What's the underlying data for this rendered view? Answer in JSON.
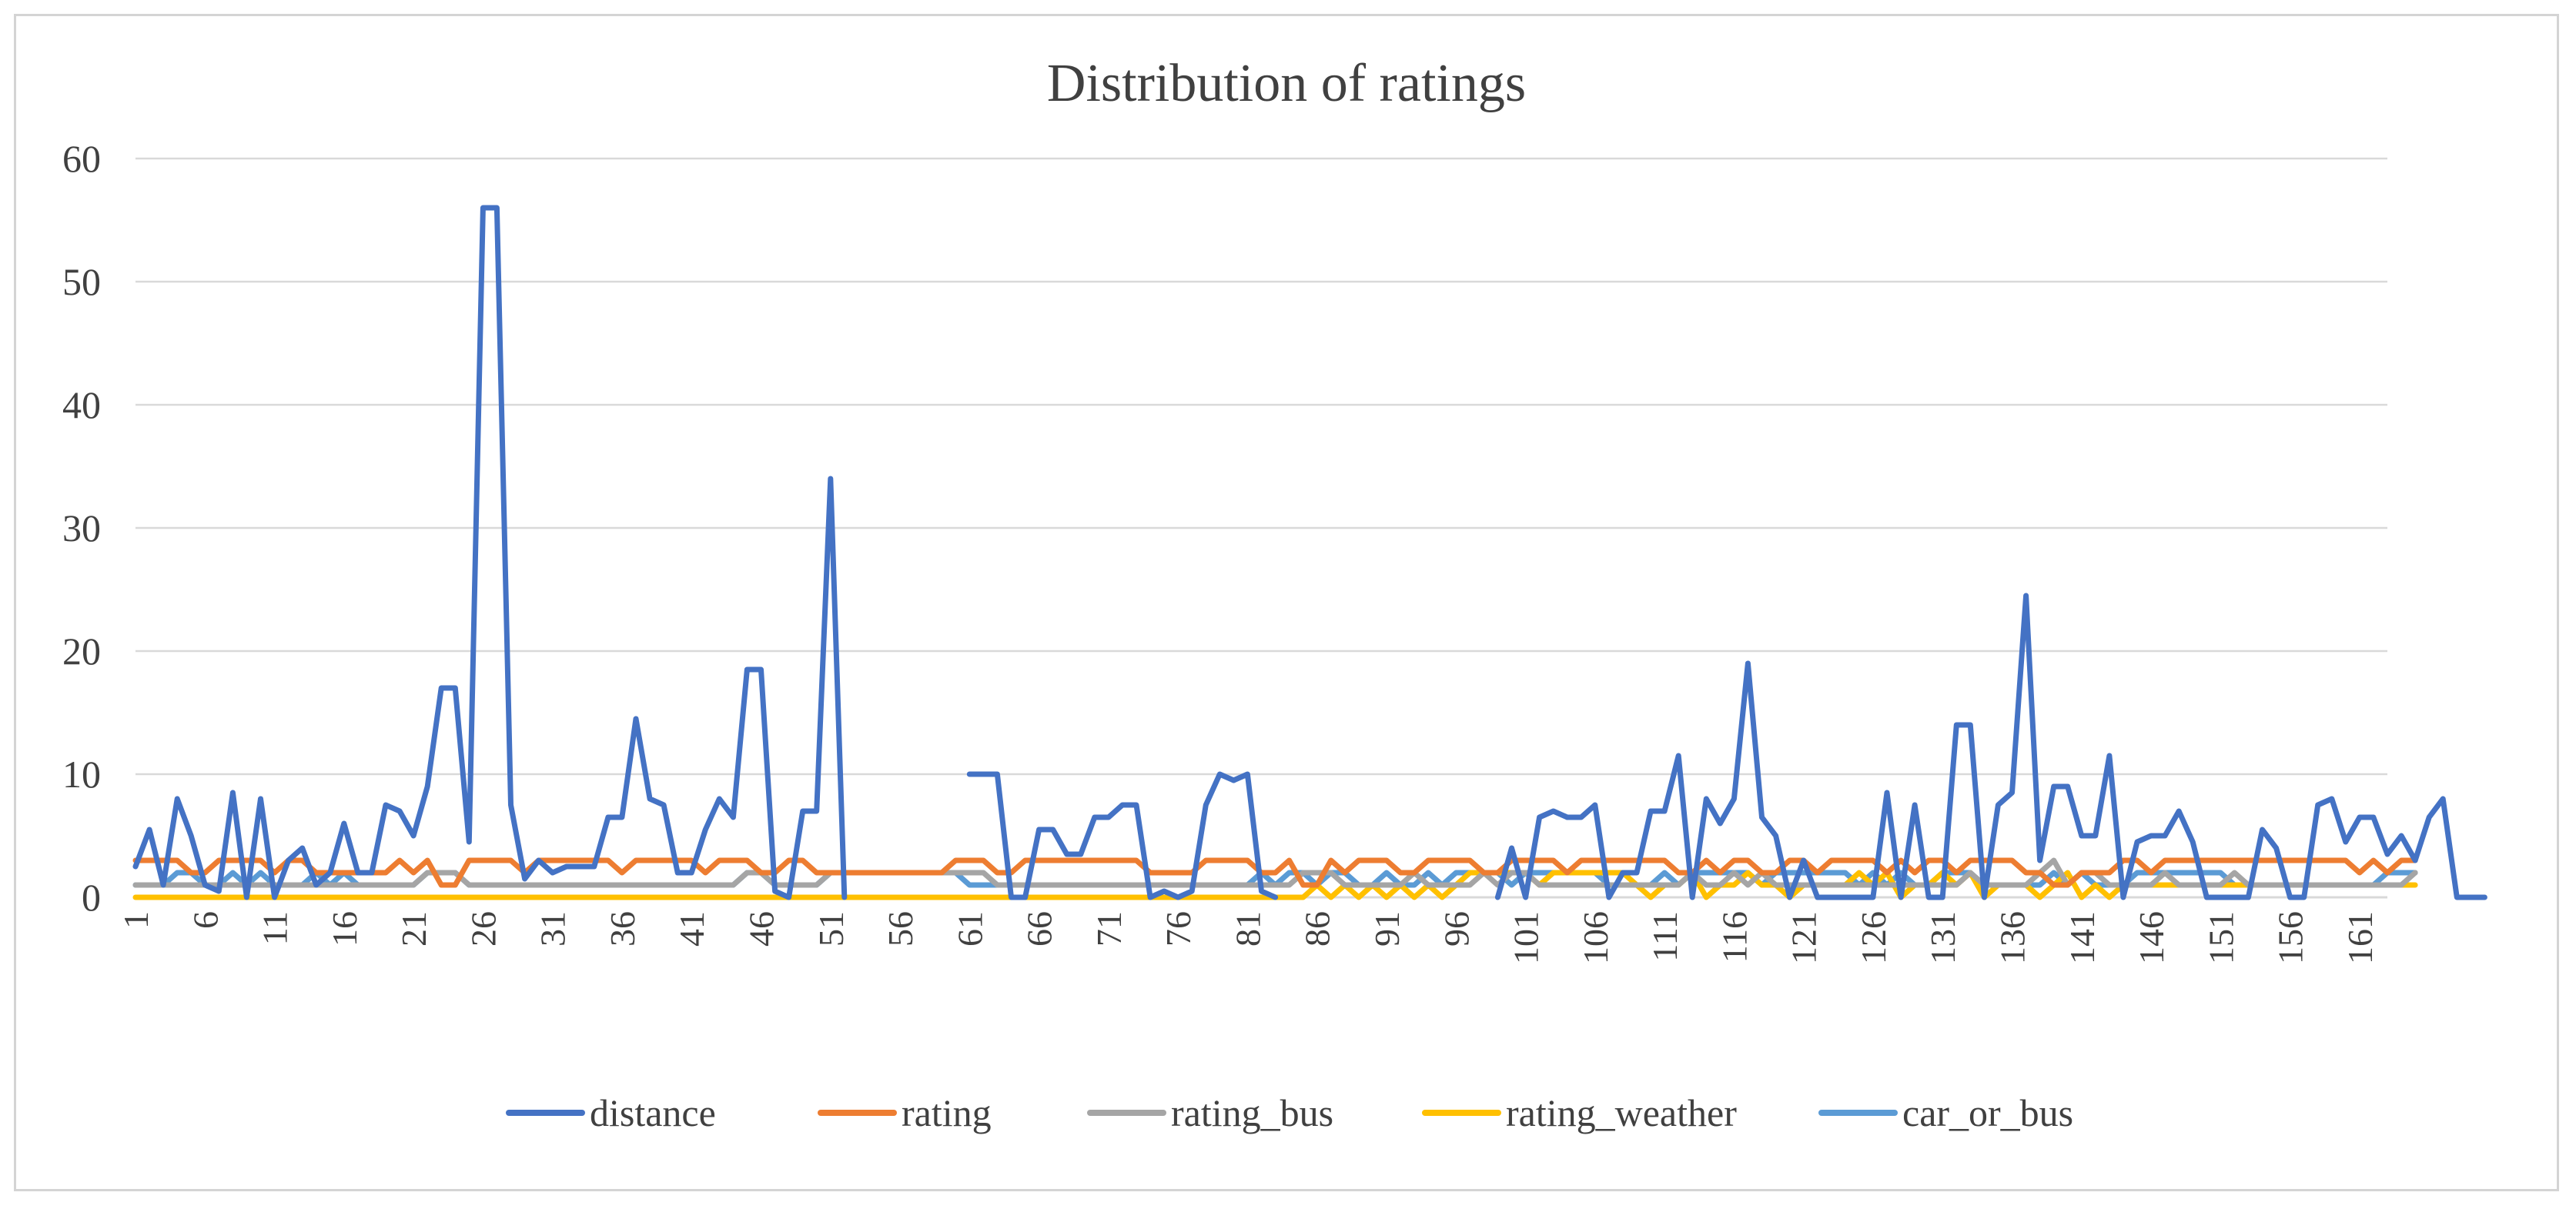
{
  "chart_data": {
    "type": "line",
    "title": "Distribution of ratings",
    "xlabel": "",
    "ylabel": "",
    "ylim": [
      0,
      60
    ],
    "yticks": [
      "0",
      "10",
      "20",
      "30",
      "40",
      "50",
      "60"
    ],
    "x_range": [
      1,
      163
    ],
    "xticks": [
      "1",
      "6",
      "11",
      "16",
      "21",
      "26",
      "31",
      "36",
      "41",
      "46",
      "51",
      "56",
      "61",
      "66",
      "71",
      "76",
      "81",
      "86",
      "91",
      "96",
      "101",
      "106",
      "111",
      "116",
      "121",
      "126",
      "131",
      "136",
      "141",
      "146",
      "151",
      "156",
      "161"
    ],
    "grid": true,
    "legend_position": "bottom",
    "series": [
      {
        "name": "distance",
        "color": "#4472C4",
        "values": [
          2.5,
          5.5,
          1,
          8,
          5,
          1,
          0.5,
          8.5,
          0,
          8,
          0,
          3,
          4,
          1,
          2,
          6,
          2,
          2,
          7.5,
          7,
          5,
          9,
          17,
          17,
          4.5,
          56,
          56,
          7.5,
          1.5,
          3,
          2,
          2.5,
          2.5,
          2.5,
          6.5,
          6.5,
          14.5,
          8,
          7.5,
          2,
          2,
          5.5,
          8,
          6.5,
          18.5,
          18.5,
          0.5,
          0,
          7,
          7,
          34,
          0,
          null,
          null,
          null,
          null,
          null,
          null,
          null,
          null,
          10,
          10,
          10,
          0,
          0,
          5.5,
          5.5,
          3.5,
          3.5,
          6.5,
          6.5,
          7.5,
          7.5,
          0,
          0.5,
          0,
          0.5,
          7.5,
          10,
          9.5,
          10,
          0.5,
          0,
          null,
          null,
          null,
          null,
          null,
          null,
          null,
          null,
          null,
          null,
          null,
          null,
          null,
          null,
          null,
          0,
          4,
          0,
          6.5,
          7,
          6.5,
          6.5,
          7.5,
          0,
          2,
          2,
          7,
          7,
          11.5,
          0,
          8,
          6,
          8,
          19,
          6.5,
          5,
          0,
          3,
          0,
          0,
          0,
          0,
          0,
          8.5,
          0,
          7.5,
          0,
          0,
          14,
          14,
          0,
          7.5,
          8.5,
          24.5,
          3,
          9,
          9,
          5,
          5,
          11.5,
          0,
          4.5,
          5,
          5,
          7,
          4.5,
          0,
          0,
          0,
          0,
          5.5,
          4,
          0,
          0,
          7.5,
          8,
          4.5,
          6.5,
          6.5,
          3.5,
          5,
          3,
          6.5,
          8,
          0,
          0,
          0
        ]
      },
      {
        "name": "rating",
        "color": "#ED7D31",
        "values": [
          3,
          3,
          3,
          3,
          2,
          2,
          3,
          3,
          3,
          3,
          2,
          3,
          3,
          2,
          2,
          2,
          2,
          2,
          2,
          3,
          2,
          3,
          1,
          1,
          3,
          3,
          3,
          3,
          2,
          3,
          3,
          3,
          3,
          3,
          3,
          2,
          3,
          3,
          3,
          3,
          3,
          2,
          3,
          3,
          3,
          2,
          2,
          3,
          3,
          2,
          2,
          2,
          2,
          2,
          2,
          2,
          2,
          2,
          2,
          3,
          3,
          3,
          2,
          2,
          3,
          3,
          3,
          3,
          3,
          3,
          3,
          3,
          3,
          2,
          2,
          2,
          2,
          3,
          3,
          3,
          3,
          2,
          2,
          3,
          1,
          1,
          3,
          2,
          3,
          3,
          3,
          2,
          2,
          3,
          3,
          3,
          3,
          2,
          2,
          3,
          3,
          3,
          3,
          2,
          3,
          3,
          3,
          3,
          3,
          3,
          3,
          2,
          2,
          3,
          2,
          3,
          3,
          2,
          2,
          3,
          3,
          2,
          3,
          3,
          3,
          3,
          2,
          3,
          2,
          3,
          3,
          2,
          3,
          3,
          3,
          3,
          2,
          2,
          1,
          1,
          2,
          2,
          2,
          3,
          3,
          2,
          3,
          3,
          3,
          3,
          3,
          3,
          3,
          3,
          3,
          3,
          3,
          3,
          3,
          3,
          2,
          3,
          2,
          3,
          3
        ]
      },
      {
        "name": "rating_bus",
        "color": "#A5A5A5",
        "values": [
          1,
          1,
          1,
          1,
          1,
          1,
          1,
          1,
          1,
          1,
          1,
          1,
          1,
          1,
          1,
          1,
          1,
          1,
          1,
          1,
          1,
          2,
          2,
          2,
          1,
          1,
          1,
          1,
          1,
          1,
          1,
          1,
          1,
          1,
          1,
          1,
          1,
          1,
          1,
          1,
          1,
          1,
          1,
          1,
          2,
          2,
          1,
          1,
          1,
          1,
          2,
          2,
          2,
          2,
          2,
          2,
          2,
          2,
          2,
          2,
          2,
          2,
          1,
          1,
          1,
          1,
          1,
          1,
          1,
          1,
          1,
          1,
          1,
          1,
          1,
          1,
          1,
          1,
          1,
          1,
          1,
          1,
          1,
          1,
          2,
          2,
          2,
          1,
          1,
          1,
          1,
          1,
          2,
          1,
          1,
          1,
          1,
          2,
          1,
          2,
          2,
          1,
          1,
          1,
          1,
          1,
          1,
          1,
          1,
          1,
          1,
          1,
          2,
          1,
          1,
          2,
          1,
          2,
          1,
          1,
          1,
          1,
          1,
          1,
          1,
          1,
          1,
          1,
          1,
          1,
          1,
          1,
          2,
          1,
          1,
          1,
          1,
          2,
          3,
          1,
          2,
          2,
          1,
          1,
          1,
          1,
          2,
          1,
          1,
          1,
          1,
          2,
          1,
          1,
          1,
          1,
          1,
          1,
          1,
          1,
          1,
          1,
          1,
          1,
          2
        ]
      },
      {
        "name": "rating_weather",
        "color": "#FFC000",
        "values": [
          0,
          0,
          0,
          0,
          0,
          0,
          0,
          0,
          0,
          0,
          0,
          0,
          0,
          0,
          0,
          0,
          0,
          0,
          0,
          0,
          0,
          0,
          0,
          0,
          0,
          0,
          0,
          0,
          0,
          0,
          0,
          0,
          0,
          0,
          0,
          0,
          0,
          0,
          0,
          0,
          0,
          0,
          0,
          0,
          0,
          0,
          0,
          0,
          0,
          0,
          0,
          0,
          0,
          0,
          0,
          0,
          0,
          0,
          0,
          0,
          0,
          0,
          0,
          0,
          0,
          0,
          0,
          0,
          0,
          0,
          0,
          0,
          0,
          0,
          0,
          0,
          0,
          0,
          0,
          0,
          0,
          0,
          0,
          0,
          0,
          1,
          0,
          1,
          0,
          1,
          0,
          1,
          0,
          1,
          0,
          1,
          2,
          2,
          2,
          2,
          2,
          1,
          2,
          2,
          2,
          2,
          2,
          2,
          1,
          0,
          1,
          1,
          2,
          0,
          1,
          1,
          2,
          1,
          1,
          0,
          1,
          1,
          1,
          1,
          2,
          1,
          2,
          0,
          1,
          1,
          2,
          1,
          2,
          0,
          1,
          1,
          1,
          0,
          1,
          2,
          0,
          1,
          0,
          1,
          1,
          1,
          1,
          1,
          1,
          1,
          1,
          1,
          1,
          1,
          1,
          1,
          1,
          1,
          1,
          1,
          1,
          1,
          1,
          1,
          1
        ]
      },
      {
        "name": "car_or_bus",
        "color": "#5B9BD5",
        "values": [
          1,
          1,
          1,
          2,
          2,
          1,
          1,
          2,
          1,
          2,
          1,
          1,
          1,
          2,
          1,
          2,
          1,
          1,
          1,
          1,
          1,
          2,
          2,
          2,
          1,
          1,
          1,
          1,
          1,
          1,
          1,
          1,
          1,
          1,
          1,
          1,
          1,
          1,
          1,
          1,
          1,
          1,
          1,
          1,
          2,
          2,
          1,
          1,
          1,
          1,
          2,
          2,
          2,
          2,
          2,
          2,
          2,
          2,
          2,
          2,
          1,
          1,
          1,
          1,
          1,
          1,
          1,
          1,
          1,
          1,
          1,
          1,
          1,
          1,
          1,
          1,
          1,
          1,
          1,
          1,
          1,
          2,
          1,
          2,
          2,
          1,
          2,
          2,
          1,
          1,
          2,
          1,
          1,
          2,
          1,
          2,
          2,
          2,
          2,
          1,
          2,
          2,
          2,
          2,
          2,
          2,
          1,
          1,
          1,
          1,
          2,
          1,
          2,
          2,
          2,
          2,
          2,
          1,
          2,
          2,
          2,
          2,
          2,
          2,
          1,
          2,
          1,
          2,
          1,
          1,
          2,
          2,
          2,
          1,
          1,
          1,
          1,
          1,
          2,
          1,
          2,
          1,
          1,
          1,
          2,
          2,
          2,
          2,
          2,
          2,
          2,
          1,
          1,
          1,
          1,
          1,
          1,
          1,
          1,
          1,
          1,
          1,
          2,
          2,
          2
        ]
      }
    ]
  }
}
